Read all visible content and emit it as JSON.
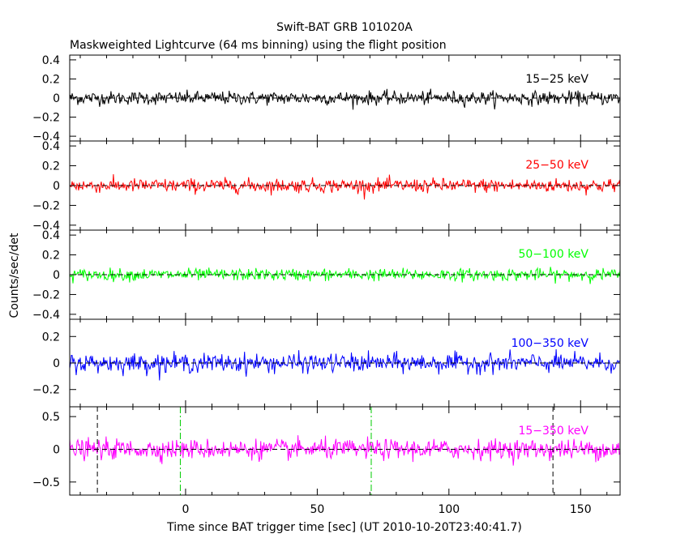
{
  "chart_data": {
    "type": "line",
    "title": "Swift-BAT GRB 101020A",
    "subtitle": "Maskweighted Lightcurve (64 ms binning) using the flight position",
    "xlabel": "Time since BAT trigger time [sec] (UT 2010-10-20T23:40:41.7)",
    "ylabel": "Counts/sec/det",
    "xlim": [
      -44,
      165
    ],
    "x_ticks": [
      0,
      50,
      100,
      150
    ],
    "panels": [
      {
        "name": "15−25 keV",
        "color": "#000000",
        "ylim": [
          -0.45,
          0.45
        ],
        "y_ticks": [
          -0.4,
          -0.2,
          0,
          0.2,
          0.4
        ],
        "y_tick_labels": [
          "−0.4",
          "−0.2",
          "0",
          "0.2",
          "0.4"
        ],
        "noise_sigma": 0.035
      },
      {
        "name": "25−50 keV",
        "color": "#ff0000",
        "ylim": [
          -0.45,
          0.45
        ],
        "y_ticks": [
          -0.4,
          -0.2,
          0,
          0.2,
          0.4
        ],
        "y_tick_labels": [
          "−0.4",
          "−0.2",
          "0",
          "0.2",
          "0.4"
        ],
        "noise_sigma": 0.035
      },
      {
        "name": "50−100 keV",
        "color": "#00ff00",
        "ylim": [
          -0.45,
          0.45
        ],
        "y_ticks": [
          -0.4,
          -0.2,
          0,
          0.2,
          0.4
        ],
        "y_tick_labels": [
          "−0.4",
          "−0.2",
          "0",
          "0.2",
          "0.4"
        ],
        "noise_sigma": 0.03
      },
      {
        "name": "100−350 keV",
        "color": "#0000ff",
        "ylim": [
          -0.33,
          0.33
        ],
        "y_ticks": [
          -0.2,
          0,
          0.2
        ],
        "y_tick_labels": [
          "−0.2",
          "0",
          "0.2"
        ],
        "noise_sigma": 0.035
      },
      {
        "name": "15−350 keV",
        "color": "#ff00ff",
        "ylim": [
          -0.7,
          0.65
        ],
        "y_ticks": [
          -0.5,
          0,
          0.5
        ],
        "y_tick_labels": [
          "−0.5",
          "0",
          "0.5"
        ],
        "noise_sigma": 0.075
      }
    ],
    "vlines": [
      {
        "x": -33.5,
        "style": "black-dashed"
      },
      {
        "x": -2,
        "style": "green-dashdot"
      },
      {
        "x": 70.5,
        "style": "green-dashdot"
      },
      {
        "x": 139.5,
        "style": "black-dashed"
      }
    ],
    "zero_line": true,
    "grid": false
  }
}
